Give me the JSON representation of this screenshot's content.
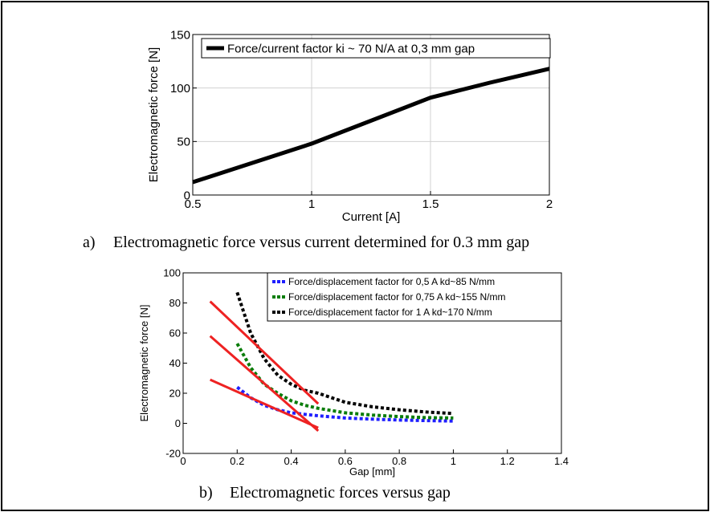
{
  "chart_data": [
    {
      "type": "line",
      "xlabel": "Current [A]",
      "ylabel": "Electromagnetic force [N]",
      "xlim": [
        0.5,
        2
      ],
      "ylim": [
        0,
        150
      ],
      "xticks": [
        0.5,
        1,
        1.5,
        2
      ],
      "xtick_labels": [
        "0.5",
        "1",
        "1.5",
        "2"
      ],
      "yticks": [
        0,
        50,
        100,
        150
      ],
      "ytick_labels": [
        "0",
        "50",
        "100",
        "150"
      ],
      "grid": true,
      "legend_position": "top-left",
      "series": [
        {
          "name": "Force/current factor ki ~ 70 N/A at 0,3 mm gap",
          "color": "#000000",
          "style": "solid",
          "x": [
            0.5,
            1.0,
            1.5,
            1.75,
            2.0
          ],
          "y": [
            12,
            48,
            91,
            105,
            118
          ]
        }
      ],
      "caption_label": "a)",
      "caption": "Electromagnetic force versus current determined for 0.3 mm gap"
    },
    {
      "type": "line",
      "xlabel": "Gap [mm]",
      "ylabel": "Electromagnetic force [N]",
      "xlim": [
        0,
        1.4
      ],
      "ylim": [
        -20,
        100
      ],
      "xticks": [
        0,
        0.2,
        0.4,
        0.6,
        0.8,
        1,
        1.2,
        1.4
      ],
      "xtick_labels": [
        "0",
        "0.2",
        "0.4",
        "0.6",
        "0.8",
        "1",
        "1.2",
        "1.4"
      ],
      "yticks": [
        -20,
        0,
        20,
        40,
        60,
        80,
        100
      ],
      "ytick_labels": [
        "-20",
        "0",
        "20",
        "40",
        "60",
        "80",
        "100"
      ],
      "grid": false,
      "legend_position": "top-right",
      "series": [
        {
          "name": "Force/displacement factor for 0,5 A kd~85 N/mm",
          "color": "#1f1fff",
          "style": "dotted",
          "x": [
            0.2,
            0.25,
            0.3,
            0.35,
            0.4,
            0.45,
            0.5,
            0.6,
            0.7,
            0.8,
            0.9,
            1.0
          ],
          "y": [
            24,
            17,
            12,
            9,
            7,
            6,
            5,
            3.5,
            2.8,
            2.2,
            1.8,
            1.5
          ]
        },
        {
          "name": "Force/displacement factor for 0,75 A kd~155 N/mm",
          "color": "#0a7d0a",
          "style": "dotted",
          "x": [
            0.2,
            0.25,
            0.3,
            0.35,
            0.4,
            0.45,
            0.5,
            0.6,
            0.7,
            0.8,
            0.9,
            1.0
          ],
          "y": [
            53,
            37,
            26,
            20,
            15,
            12,
            10,
            7,
            5.5,
            4.5,
            3.8,
            3.5
          ]
        },
        {
          "name": "Force/displacement factor for 1 A kd~170 N/mm",
          "color": "#000000",
          "style": "dotted",
          "x": [
            0.2,
            0.25,
            0.3,
            0.35,
            0.4,
            0.45,
            0.5,
            0.6,
            0.7,
            0.8,
            0.9,
            1.0
          ],
          "y": [
            87,
            60,
            43,
            32,
            26,
            22,
            20,
            14,
            11,
            9,
            7.5,
            6.5
          ]
        }
      ],
      "tangent_lines": {
        "color": "#ee2222",
        "lines": [
          {
            "x": [
              0.1,
              0.5
            ],
            "y": [
              29,
              -3
            ]
          },
          {
            "x": [
              0.1,
              0.5
            ],
            "y": [
              58,
              -5
            ]
          },
          {
            "x": [
              0.1,
              0.5
            ],
            "y": [
              81,
              13
            ]
          }
        ]
      },
      "caption_label": "b)",
      "caption": "Electromagnetic forces versus gap"
    }
  ]
}
